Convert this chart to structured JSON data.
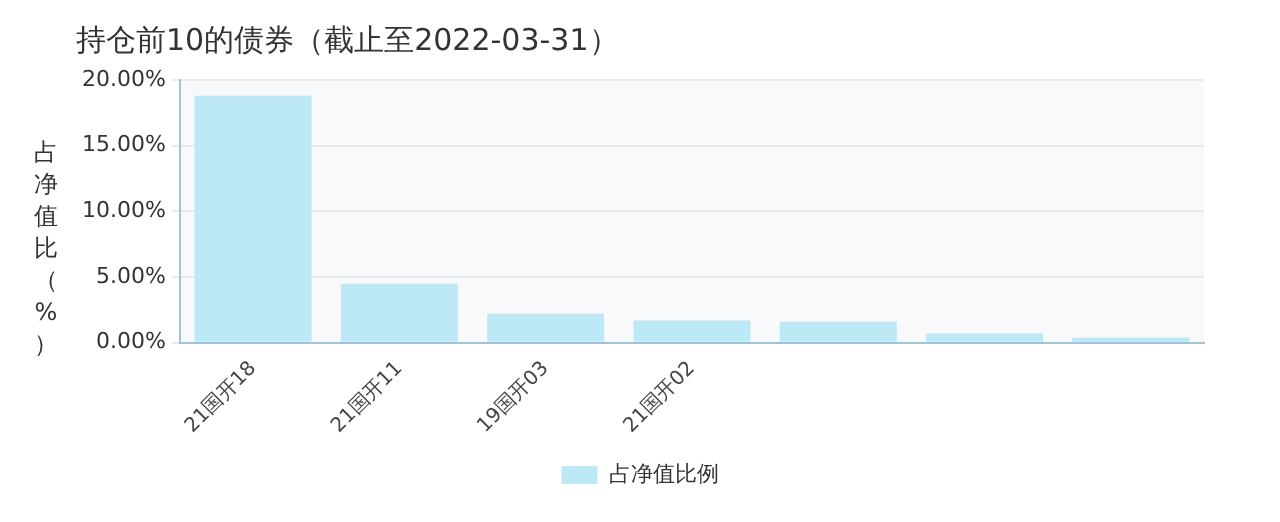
{
  "chart_data": {
    "type": "bar",
    "title": "持仓前10的债券（截止至2022-03-31）",
    "ylabel": "占净值比（%）",
    "categories": [
      "21国开18",
      "21国开11",
      "19国开03",
      "21国开02",
      null,
      null,
      null
    ],
    "series": [
      {
        "name": "占净值比例",
        "color": "#bde8f6",
        "values": [
          18.8,
          4.5,
          2.2,
          1.7,
          1.6,
          0.7,
          0.4
        ]
      }
    ],
    "ylim": [
      0,
      20
    ],
    "yticks": [
      {
        "value": 0,
        "label": "0.00%"
      },
      {
        "value": 5,
        "label": "5.00%"
      },
      {
        "value": 10,
        "label": "10.00%"
      },
      {
        "value": 15,
        "label": "15.00%"
      },
      {
        "value": 20,
        "label": "20.00%"
      }
    ],
    "grid": "y",
    "legend": "bottom"
  }
}
